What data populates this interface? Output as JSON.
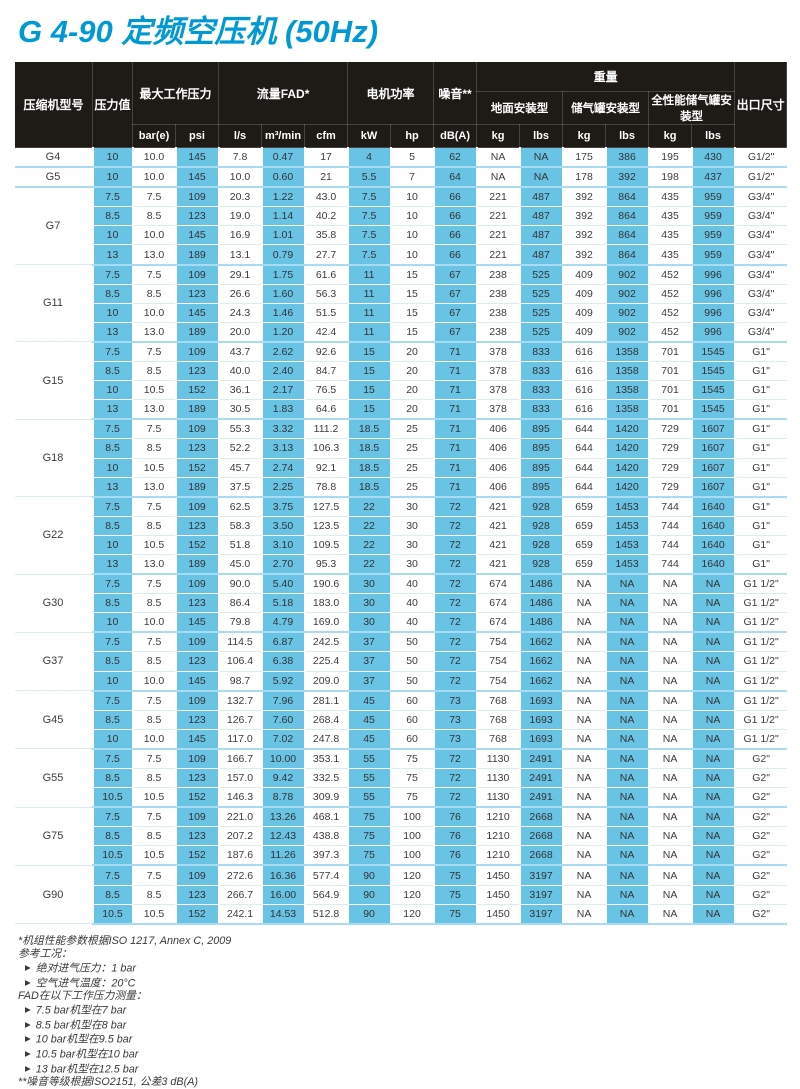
{
  "page": {
    "title": "G 4-90 定频空压机 (50Hz)"
  },
  "colors": {
    "accent_cyan": "#0099d4",
    "header_bg": "#1e1a16",
    "cell_blue": "#69c3e4",
    "group_divider": "#a9dcf2"
  },
  "table": {
    "header": {
      "model": "压缩机型号",
      "pressure": "压力值",
      "max_pressure": "最大工作压力",
      "flow": "流量FAD*",
      "motor_power": "电机功率",
      "noise": "噪音**",
      "weight": "重量",
      "mount_floor": "地面安装型",
      "mount_tank": "储气罐安装型",
      "mount_full": "全性能储气罐安装型",
      "outlet": "出口尺寸",
      "units": {
        "bar": "bar(e)",
        "psi": "psi",
        "ls": "l/s",
        "m3min": "m³/min",
        "cfm": "cfm",
        "kw": "kW",
        "hp": "hp",
        "dba": "dB(A)",
        "kg": "kg",
        "lbs": "lbs"
      }
    },
    "column_keys": [
      "pressure-value",
      "bar-e",
      "psi",
      "l-s",
      "m3-min",
      "cfm",
      "kw",
      "hp",
      "dba",
      "floor-kg",
      "floor-lbs",
      "tank-kg",
      "tank-lbs",
      "fullperf-kg",
      "fullperf-lbs",
      "outlet-size"
    ],
    "groups": [
      {
        "model": "G4",
        "rows": [
          [
            "10",
            "10.0",
            "145",
            "7.8",
            "0.47",
            "17",
            "4",
            "5",
            "62",
            "NA",
            "NA",
            "175",
            "386",
            "195",
            "430",
            "G1/2\""
          ]
        ]
      },
      {
        "model": "G5",
        "rows": [
          [
            "10",
            "10.0",
            "145",
            "10.0",
            "0.60",
            "21",
            "5.5",
            "7",
            "64",
            "NA",
            "NA",
            "178",
            "392",
            "198",
            "437",
            "G1/2\""
          ]
        ]
      },
      {
        "model": "G7",
        "rows": [
          [
            "7.5",
            "7.5",
            "109",
            "20.3",
            "1.22",
            "43.0",
            "7.5",
            "10",
            "66",
            "221",
            "487",
            "392",
            "864",
            "435",
            "959",
            "G3/4\""
          ],
          [
            "8.5",
            "8.5",
            "123",
            "19.0",
            "1.14",
            "40.2",
            "7.5",
            "10",
            "66",
            "221",
            "487",
            "392",
            "864",
            "435",
            "959",
            "G3/4\""
          ],
          [
            "10",
            "10.0",
            "145",
            "16.9",
            "1.01",
            "35.8",
            "7.5",
            "10",
            "66",
            "221",
            "487",
            "392",
            "864",
            "435",
            "959",
            "G3/4\""
          ],
          [
            "13",
            "13.0",
            "189",
            "13.1",
            "0.79",
            "27.7",
            "7.5",
            "10",
            "66",
            "221",
            "487",
            "392",
            "864",
            "435",
            "959",
            "G3/4\""
          ]
        ]
      },
      {
        "model": "G11",
        "rows": [
          [
            "7.5",
            "7.5",
            "109",
            "29.1",
            "1.75",
            "61.6",
            "11",
            "15",
            "67",
            "238",
            "525",
            "409",
            "902",
            "452",
            "996",
            "G3/4\""
          ],
          [
            "8.5",
            "8.5",
            "123",
            "26.6",
            "1.60",
            "56.3",
            "11",
            "15",
            "67",
            "238",
            "525",
            "409",
            "902",
            "452",
            "996",
            "G3/4\""
          ],
          [
            "10",
            "10.0",
            "145",
            "24.3",
            "1.46",
            "51.5",
            "11",
            "15",
            "67",
            "238",
            "525",
            "409",
            "902",
            "452",
            "996",
            "G3/4\""
          ],
          [
            "13",
            "13.0",
            "189",
            "20.0",
            "1.20",
            "42.4",
            "11",
            "15",
            "67",
            "238",
            "525",
            "409",
            "902",
            "452",
            "996",
            "G3/4\""
          ]
        ]
      },
      {
        "model": "G15",
        "rows": [
          [
            "7.5",
            "7.5",
            "109",
            "43.7",
            "2.62",
            "92.6",
            "15",
            "20",
            "71",
            "378",
            "833",
            "616",
            "1358",
            "701",
            "1545",
            "G1\""
          ],
          [
            "8.5",
            "8.5",
            "123",
            "40.0",
            "2.40",
            "84.7",
            "15",
            "20",
            "71",
            "378",
            "833",
            "616",
            "1358",
            "701",
            "1545",
            "G1\""
          ],
          [
            "10",
            "10.5",
            "152",
            "36.1",
            "2.17",
            "76.5",
            "15",
            "20",
            "71",
            "378",
            "833",
            "616",
            "1358",
            "701",
            "1545",
            "G1\""
          ],
          [
            "13",
            "13.0",
            "189",
            "30.5",
            "1.83",
            "64.6",
            "15",
            "20",
            "71",
            "378",
            "833",
            "616",
            "1358",
            "701",
            "1545",
            "G1\""
          ]
        ]
      },
      {
        "model": "G18",
        "rows": [
          [
            "7.5",
            "7.5",
            "109",
            "55.3",
            "3.32",
            "111.2",
            "18.5",
            "25",
            "71",
            "406",
            "895",
            "644",
            "1420",
            "729",
            "1607",
            "G1\""
          ],
          [
            "8.5",
            "8.5",
            "123",
            "52.2",
            "3.13",
            "106.3",
            "18.5",
            "25",
            "71",
            "406",
            "895",
            "644",
            "1420",
            "729",
            "1607",
            "G1\""
          ],
          [
            "10",
            "10.5",
            "152",
            "45.7",
            "2.74",
            "92.1",
            "18.5",
            "25",
            "71",
            "406",
            "895",
            "644",
            "1420",
            "729",
            "1607",
            "G1\""
          ],
          [
            "13",
            "13.0",
            "189",
            "37.5",
            "2.25",
            "78.8",
            "18.5",
            "25",
            "71",
            "406",
            "895",
            "644",
            "1420",
            "729",
            "1607",
            "G1\""
          ]
        ]
      },
      {
        "model": "G22",
        "rows": [
          [
            "7.5",
            "7.5",
            "109",
            "62.5",
            "3.75",
            "127.5",
            "22",
            "30",
            "72",
            "421",
            "928",
            "659",
            "1453",
            "744",
            "1640",
            "G1\""
          ],
          [
            "8.5",
            "8.5",
            "123",
            "58.3",
            "3.50",
            "123.5",
            "22",
            "30",
            "72",
            "421",
            "928",
            "659",
            "1453",
            "744",
            "1640",
            "G1\""
          ],
          [
            "10",
            "10.5",
            "152",
            "51.8",
            "3.10",
            "109.5",
            "22",
            "30",
            "72",
            "421",
            "928",
            "659",
            "1453",
            "744",
            "1640",
            "G1\""
          ],
          [
            "13",
            "13.0",
            "189",
            "45.0",
            "2.70",
            "95.3",
            "22",
            "30",
            "72",
            "421",
            "928",
            "659",
            "1453",
            "744",
            "1640",
            "G1\""
          ]
        ]
      },
      {
        "model": "G30",
        "rows": [
          [
            "7.5",
            "7.5",
            "109",
            "90.0",
            "5.40",
            "190.6",
            "30",
            "40",
            "72",
            "674",
            "1486",
            "NA",
            "NA",
            "NA",
            "NA",
            "G1 1/2\""
          ],
          [
            "8.5",
            "8.5",
            "123",
            "86.4",
            "5.18",
            "183.0",
            "30",
            "40",
            "72",
            "674",
            "1486",
            "NA",
            "NA",
            "NA",
            "NA",
            "G1 1/2\""
          ],
          [
            "10",
            "10.0",
            "145",
            "79.8",
            "4.79",
            "169.0",
            "30",
            "40",
            "72",
            "674",
            "1486",
            "NA",
            "NA",
            "NA",
            "NA",
            "G1 1/2\""
          ]
        ]
      },
      {
        "model": "G37",
        "rows": [
          [
            "7.5",
            "7.5",
            "109",
            "114.5",
            "6.87",
            "242.5",
            "37",
            "50",
            "72",
            "754",
            "1662",
            "NA",
            "NA",
            "NA",
            "NA",
            "G1 1/2\""
          ],
          [
            "8.5",
            "8.5",
            "123",
            "106.4",
            "6.38",
            "225.4",
            "37",
            "50",
            "72",
            "754",
            "1662",
            "NA",
            "NA",
            "NA",
            "NA",
            "G1 1/2\""
          ],
          [
            "10",
            "10.0",
            "145",
            "98.7",
            "5.92",
            "209.0",
            "37",
            "50",
            "72",
            "754",
            "1662",
            "NA",
            "NA",
            "NA",
            "NA",
            "G1 1/2\""
          ]
        ]
      },
      {
        "model": "G45",
        "rows": [
          [
            "7.5",
            "7.5",
            "109",
            "132.7",
            "7.96",
            "281.1",
            "45",
            "60",
            "73",
            "768",
            "1693",
            "NA",
            "NA",
            "NA",
            "NA",
            "G1 1/2\""
          ],
          [
            "8.5",
            "8.5",
            "123",
            "126.7",
            "7.60",
            "268.4",
            "45",
            "60",
            "73",
            "768",
            "1693",
            "NA",
            "NA",
            "NA",
            "NA",
            "G1 1/2\""
          ],
          [
            "10",
            "10.0",
            "145",
            "117.0",
            "7.02",
            "247.8",
            "45",
            "60",
            "73",
            "768",
            "1693",
            "NA",
            "NA",
            "NA",
            "NA",
            "G1 1/2\""
          ]
        ]
      },
      {
        "model": "G55",
        "rows": [
          [
            "7.5",
            "7.5",
            "109",
            "166.7",
            "10.00",
            "353.1",
            "55",
            "75",
            "72",
            "1130",
            "2491",
            "NA",
            "NA",
            "NA",
            "NA",
            "G2\""
          ],
          [
            "8.5",
            "8.5",
            "123",
            "157.0",
            "9.42",
            "332.5",
            "55",
            "75",
            "72",
            "1130",
            "2491",
            "NA",
            "NA",
            "NA",
            "NA",
            "G2\""
          ],
          [
            "10.5",
            "10.5",
            "152",
            "146.3",
            "8.78",
            "309.9",
            "55",
            "75",
            "72",
            "1130",
            "2491",
            "NA",
            "NA",
            "NA",
            "NA",
            "G2\""
          ]
        ]
      },
      {
        "model": "G75",
        "rows": [
          [
            "7.5",
            "7.5",
            "109",
            "221.0",
            "13.26",
            "468.1",
            "75",
            "100",
            "76",
            "1210",
            "2668",
            "NA",
            "NA",
            "NA",
            "NA",
            "G2\""
          ],
          [
            "8.5",
            "8.5",
            "123",
            "207.2",
            "12.43",
            "438.8",
            "75",
            "100",
            "76",
            "1210",
            "2668",
            "NA",
            "NA",
            "NA",
            "NA",
            "G2\""
          ],
          [
            "10.5",
            "10.5",
            "152",
            "187.6",
            "11.26",
            "397.3",
            "75",
            "100",
            "76",
            "1210",
            "2668",
            "NA",
            "NA",
            "NA",
            "NA",
            "G2\""
          ]
        ]
      },
      {
        "model": "G90",
        "rows": [
          [
            "7.5",
            "7.5",
            "109",
            "272.6",
            "16.36",
            "577.4",
            "90",
            "120",
            "75",
            "1450",
            "3197",
            "NA",
            "NA",
            "NA",
            "NA",
            "G2\""
          ],
          [
            "8.5",
            "8.5",
            "123",
            "266.7",
            "16.00",
            "564.9",
            "90",
            "120",
            "75",
            "1450",
            "3197",
            "NA",
            "NA",
            "NA",
            "NA",
            "G2\""
          ],
          [
            "10.5",
            "10.5",
            "152",
            "242.1",
            "14.53",
            "512.8",
            "90",
            "120",
            "75",
            "1450",
            "3197",
            "NA",
            "NA",
            "NA",
            "NA",
            "G2\""
          ]
        ]
      }
    ]
  },
  "footnotes": {
    "bullet_char": "▶",
    "lines": [
      {
        "b": false,
        "t": "*机组性能参数根据ISO 1217, Annex C, 2009"
      },
      {
        "b": false,
        "t": "参考工况："
      },
      {
        "b": true,
        "t": "绝对进气压力：1 bar"
      },
      {
        "b": true,
        "t": "空气进气温度：20°C"
      },
      {
        "b": false,
        "t": "FAD在以下工作压力测量："
      },
      {
        "b": true,
        "t": "7.5 bar机型在7 bar"
      },
      {
        "b": true,
        "t": "8.5 bar机型在8 bar"
      },
      {
        "b": true,
        "t": "10 bar机型在9.5 bar"
      },
      {
        "b": true,
        "t": "10.5 bar机型在10 bar"
      },
      {
        "b": true,
        "t": "13 bar机型在12.5 bar"
      },
      {
        "b": false,
        "t": "**噪音等级根据ISO2151, 公差3 dB(A)"
      }
    ]
  }
}
